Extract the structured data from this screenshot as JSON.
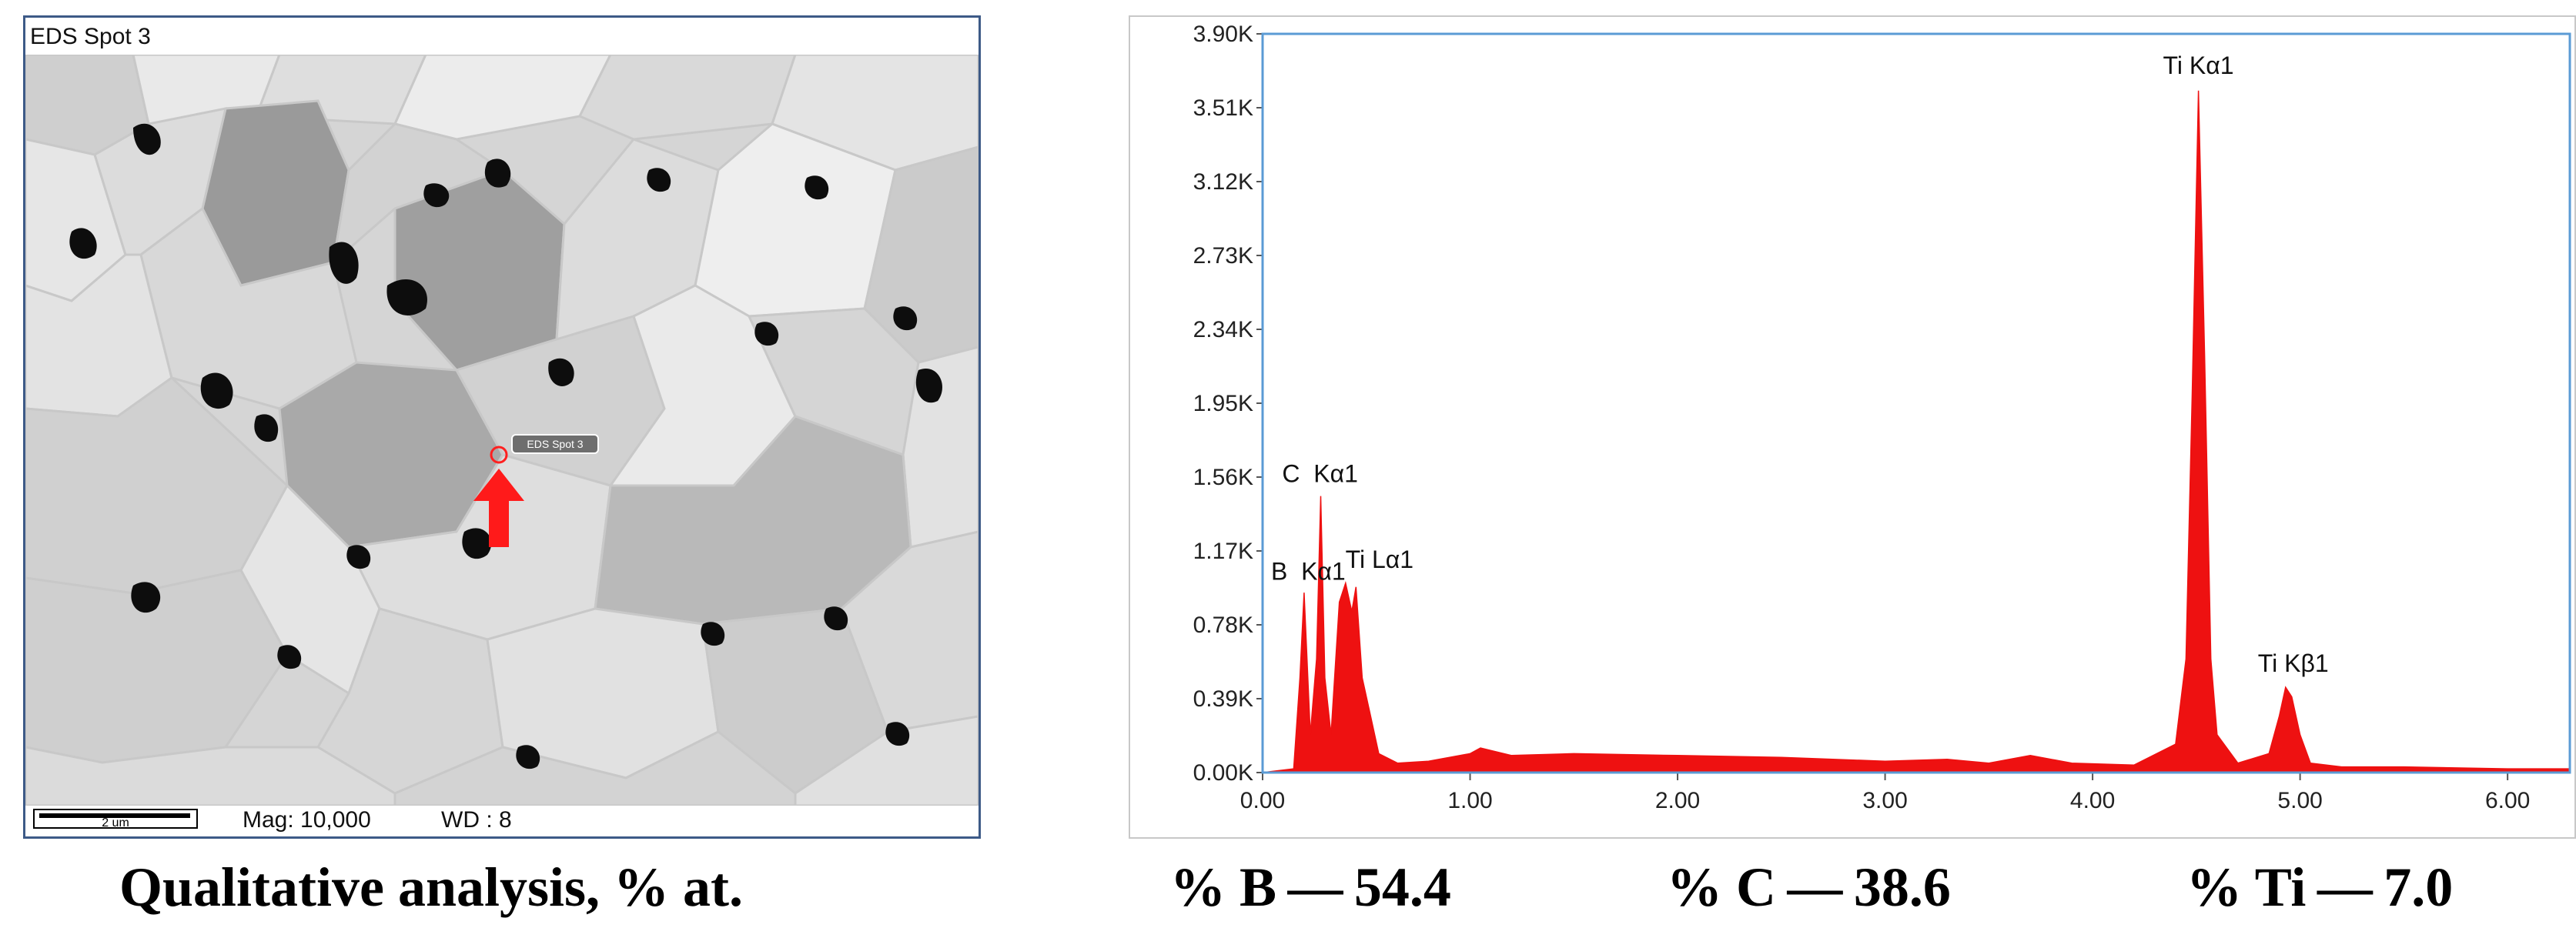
{
  "sem": {
    "title": "EDS Spot 3",
    "marker_label": "EDS Spot 3",
    "scale_label": "2 um",
    "mag": "Mag: 10,000",
    "wd": "WD : 8"
  },
  "caption": "Qualitative analysis, % at.",
  "results": [
    {
      "label": "% B — 54.4"
    },
    {
      "label": "% C — 38.6"
    },
    {
      "label": "% Ti — 7.0"
    }
  ],
  "colors": {
    "spectrum": "#ee1111",
    "arrow": "#ff1a1a",
    "axis": "#5b9bd5"
  },
  "chart_data": {
    "type": "area",
    "xlim": [
      0,
      6.3
    ],
    "ylim": [
      0,
      3.9
    ],
    "x_ticks": [
      "0.00",
      "1.00",
      "2.00",
      "3.00",
      "4.00",
      "5.00",
      "6.00"
    ],
    "x_tick_values": [
      0,
      1,
      2,
      3,
      4,
      5,
      6
    ],
    "y_ticks": [
      "0.00K",
      "0.39K",
      "0.78K",
      "1.17K",
      "1.56K",
      "1.95K",
      "2.34K",
      "2.73K",
      "3.12K",
      "3.51K",
      "3.90K"
    ],
    "y_tick_values": [
      0,
      0.39,
      0.78,
      1.17,
      1.56,
      1.95,
      2.34,
      2.73,
      3.12,
      3.51,
      3.9
    ],
    "peaks": [
      {
        "label": "C  Kα1",
        "x": 0.277,
        "y": 1.46
      },
      {
        "label": "Ti Lα1",
        "x": 0.452,
        "y": 1.0
      },
      {
        "label": "B  Kα1",
        "x": 0.183,
        "y": 0.96
      },
      {
        "label": "Ti Kα1",
        "x": 4.51,
        "y": 3.6
      },
      {
        "label": "Ti Kβ1",
        "x": 4.93,
        "y": 0.45
      }
    ],
    "series": [
      {
        "x": [
          0.0,
          0.15,
          0.18,
          0.2,
          0.23,
          0.26,
          0.28,
          0.3,
          0.33,
          0.37,
          0.4,
          0.43,
          0.45,
          0.48,
          0.52,
          0.56,
          0.65,
          0.8,
          1.0,
          1.05,
          1.2,
          1.5,
          2.0,
          2.5,
          3.0,
          3.3,
          3.5,
          3.7,
          3.9,
          4.2,
          4.4,
          4.45,
          4.48,
          4.51,
          4.54,
          4.57,
          4.6,
          4.7,
          4.85,
          4.9,
          4.93,
          4.96,
          5.0,
          5.05,
          5.2,
          5.5,
          6.0,
          6.3
        ],
        "y": [
          0.0,
          0.02,
          0.5,
          0.95,
          0.2,
          0.6,
          1.46,
          0.5,
          0.2,
          0.9,
          1.0,
          0.85,
          0.98,
          0.5,
          0.3,
          0.1,
          0.05,
          0.06,
          0.1,
          0.13,
          0.09,
          0.1,
          0.09,
          0.08,
          0.06,
          0.07,
          0.05,
          0.09,
          0.05,
          0.04,
          0.15,
          0.6,
          2.0,
          3.6,
          2.2,
          0.6,
          0.2,
          0.05,
          0.1,
          0.3,
          0.45,
          0.4,
          0.2,
          0.05,
          0.03,
          0.03,
          0.02,
          0.02
        ]
      }
    ]
  }
}
